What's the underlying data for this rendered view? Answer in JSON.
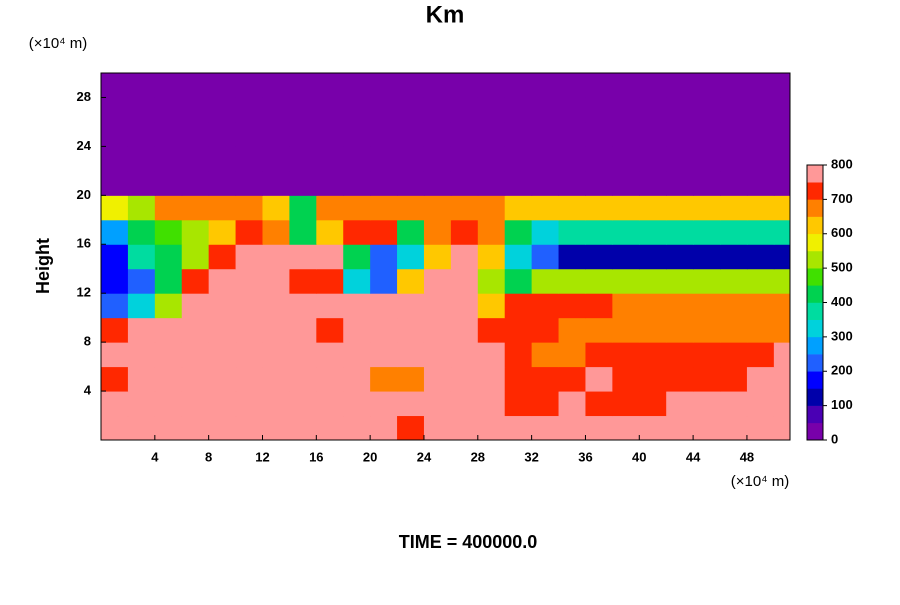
{
  "chart_data": {
    "type": "heatmap",
    "title": "Km",
    "y_unit": "(×10⁴ m)",
    "x_unit": "(×10⁴ m)",
    "ylabel": "Height",
    "footer": "TIME = 400000.0",
    "xlim": [
      0,
      51.2
    ],
    "ylim": [
      0,
      30
    ],
    "xticks": [
      4,
      8,
      12,
      16,
      20,
      24,
      28,
      32,
      36,
      40,
      44,
      48
    ],
    "yticks": [
      4,
      8,
      12,
      16,
      20,
      24,
      28
    ],
    "x_edges": [
      0,
      2,
      4,
      6,
      8,
      10,
      12,
      14,
      16,
      18,
      20,
      22,
      24,
      26,
      28,
      30,
      32,
      34,
      36,
      38,
      40,
      42,
      44,
      46,
      48,
      50,
      51.2
    ],
    "y_edges": [
      0,
      2,
      4,
      6,
      8,
      10,
      12,
      14,
      16,
      18,
      20,
      22,
      24,
      26,
      28,
      30
    ],
    "z": [
      [
        800,
        800,
        800,
        800,
        800,
        800,
        800,
        800,
        800,
        800,
        800,
        700,
        800,
        800,
        800,
        800,
        800,
        800,
        800,
        800,
        800,
        800,
        800,
        800,
        800,
        800
      ],
      [
        800,
        800,
        800,
        800,
        800,
        800,
        800,
        800,
        800,
        800,
        800,
        800,
        800,
        800,
        800,
        700,
        700,
        800,
        700,
        700,
        700,
        800,
        800,
        800,
        800,
        800
      ],
      [
        700,
        800,
        800,
        800,
        800,
        800,
        800,
        800,
        800,
        800,
        650,
        650,
        800,
        800,
        800,
        700,
        700,
        700,
        800,
        700,
        700,
        700,
        700,
        700,
        800,
        800
      ],
      [
        800,
        800,
        800,
        800,
        800,
        800,
        800,
        800,
        800,
        800,
        800,
        800,
        800,
        800,
        800,
        700,
        650,
        650,
        700,
        700,
        700,
        700,
        700,
        700,
        700,
        800
      ],
      [
        700,
        800,
        800,
        800,
        800,
        800,
        800,
        800,
        700,
        800,
        800,
        800,
        800,
        800,
        700,
        700,
        700,
        650,
        650,
        650,
        650,
        650,
        650,
        650,
        650,
        650
      ],
      [
        200,
        300,
        500,
        800,
        800,
        800,
        800,
        800,
        800,
        800,
        800,
        800,
        800,
        800,
        600,
        700,
        700,
        700,
        700,
        650,
        650,
        650,
        650,
        650,
        650,
        650
      ],
      [
        150,
        200,
        400,
        700,
        800,
        800,
        800,
        700,
        700,
        300,
        200,
        600,
        800,
        800,
        500,
        400,
        500,
        500,
        500,
        500,
        500,
        500,
        500,
        500,
        500,
        500
      ],
      [
        150,
        350,
        400,
        500,
        700,
        800,
        800,
        800,
        800,
        400,
        200,
        300,
        600,
        800,
        600,
        300,
        200,
        100,
        100,
        100,
        100,
        100,
        100,
        100,
        100,
        100
      ],
      [
        250,
        400,
        450,
        500,
        600,
        700,
        650,
        400,
        600,
        700,
        700,
        400,
        650,
        700,
        650,
        400,
        300,
        350,
        350,
        350,
        350,
        350,
        350,
        350,
        350,
        350
      ],
      [
        550,
        500,
        650,
        650,
        650,
        650,
        600,
        400,
        650,
        650,
        650,
        650,
        650,
        650,
        650,
        600,
        600,
        600,
        600,
        600,
        600,
        600,
        600,
        600,
        600,
        600
      ],
      [
        0,
        0,
        0,
        0,
        0,
        0,
        0,
        0,
        0,
        0,
        0,
        0,
        0,
        0,
        0,
        0,
        0,
        0,
        0,
        0,
        0,
        0,
        0,
        0,
        0,
        0
      ],
      [
        0,
        0,
        0,
        0,
        0,
        0,
        0,
        0,
        0,
        0,
        0,
        0,
        0,
        0,
        0,
        0,
        0,
        0,
        0,
        0,
        0,
        0,
        0,
        0,
        0,
        0
      ],
      [
        0,
        0,
        0,
        0,
        0,
        0,
        0,
        0,
        0,
        0,
        0,
        0,
        0,
        0,
        0,
        0,
        0,
        0,
        0,
        0,
        0,
        0,
        0,
        0,
        0,
        0
      ],
      [
        0,
        0,
        0,
        0,
        0,
        0,
        0,
        0,
        0,
        0,
        0,
        0,
        0,
        0,
        0,
        0,
        0,
        0,
        0,
        0,
        0,
        0,
        0,
        0,
        0,
        0
      ],
      [
        0,
        0,
        0,
        0,
        0,
        0,
        0,
        0,
        0,
        0,
        0,
        0,
        0,
        0,
        0,
        0,
        0,
        0,
        0,
        0,
        0,
        0,
        0,
        0,
        0,
        0
      ]
    ],
    "levels": [
      0,
      50,
      100,
      150,
      200,
      250,
      300,
      350,
      400,
      450,
      500,
      550,
      600,
      650,
      700,
      750
    ],
    "colors": [
      "#7800aa",
      "#4a00b4",
      "#0000aa",
      "#0000ff",
      "#2060ff",
      "#00a0ff",
      "#00d2dc",
      "#00dca0",
      "#00d250",
      "#40e000",
      "#a8e600",
      "#f0f000",
      "#ffc800",
      "#ff8000",
      "#ff2800",
      "#ff9898"
    ],
    "colorbar_lim": [
      0,
      800
    ],
    "colorbar_ticks": [
      0,
      100,
      200,
      300,
      400,
      500,
      600,
      700,
      800
    ]
  }
}
